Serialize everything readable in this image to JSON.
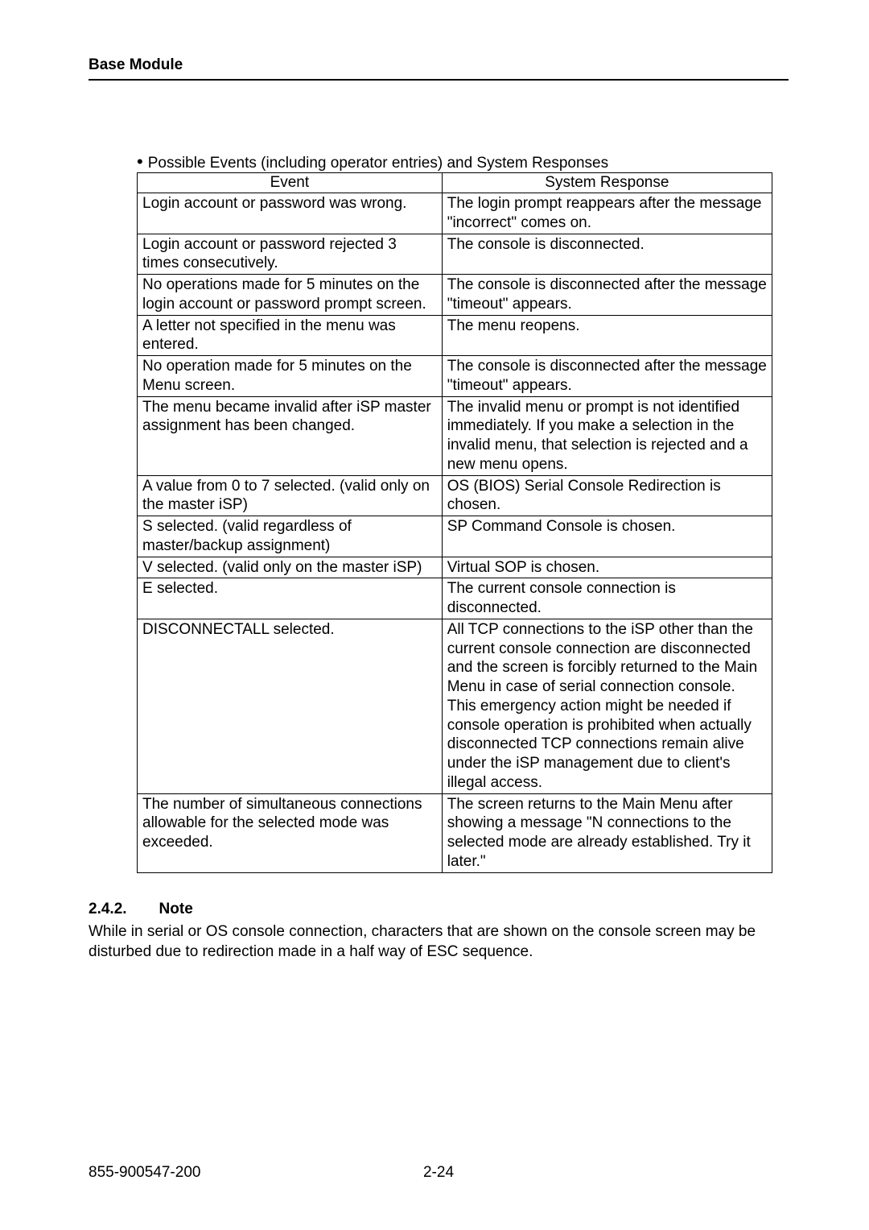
{
  "header": {
    "title": "Base Module"
  },
  "bullet": {
    "text": "Possible Events (including operator entries) and System Responses"
  },
  "table": {
    "columns": [
      "Event",
      "System Response"
    ],
    "rows": [
      [
        "Login account or password was wrong.",
        "The login prompt reappears after the message \"incorrect\" comes on."
      ],
      [
        "Login account or password rejected 3 times consecutively.",
        "The console is disconnected."
      ],
      [
        "No operations made for 5 minutes on the login account or password prompt screen.",
        "The console is disconnected after the message \"timeout\" appears."
      ],
      [
        "A letter not specified in the menu was entered.",
        "The menu reopens."
      ],
      [
        "No operation made for 5 minutes on the Menu screen.",
        "The console is disconnected after the message \"timeout\" appears."
      ],
      [
        "The menu became invalid after iSP master assignment has been changed.",
        "The invalid menu or prompt is not identified immediately.\nIf you make a selection in the invalid menu, that selection is rejected and a new menu opens."
      ],
      [
        "A value from 0 to 7 selected.\n(valid only on the master iSP)",
        "OS (BIOS) Serial Console Redirection is chosen."
      ],
      [
        "S selected.\n(valid regardless of master/backup assignment)",
        "SP Command Console is chosen."
      ],
      [
        "V selected.\n(valid only on the master iSP)",
        "Virtual SOP is chosen."
      ],
      [
        "E selected.",
        "The current console connection is disconnected."
      ],
      [
        "DISCONNECTALL selected.",
        "All TCP connections to the iSP other than the current console connection are disconnected and the screen is forcibly returned to the Main Menu in case of serial connection console.\nThis emergency action might be needed if console operation is prohibited when actually disconnected TCP connections remain alive under the iSP management due to client's illegal access."
      ],
      [
        "The number of simultaneous connections allowable for the selected mode was exceeded.",
        "The screen returns to the Main Menu after showing a message \"N connections to the selected mode are already established. Try it later.\""
      ]
    ]
  },
  "section": {
    "number": "2.4.2.",
    "title": "Note",
    "body": "While in serial or OS console connection, characters that are shown on the console screen may be disturbed due to redirection made in a half way of ESC sequence."
  },
  "footer": {
    "doc_number": "855-900547-200",
    "page_number": "2-24"
  }
}
